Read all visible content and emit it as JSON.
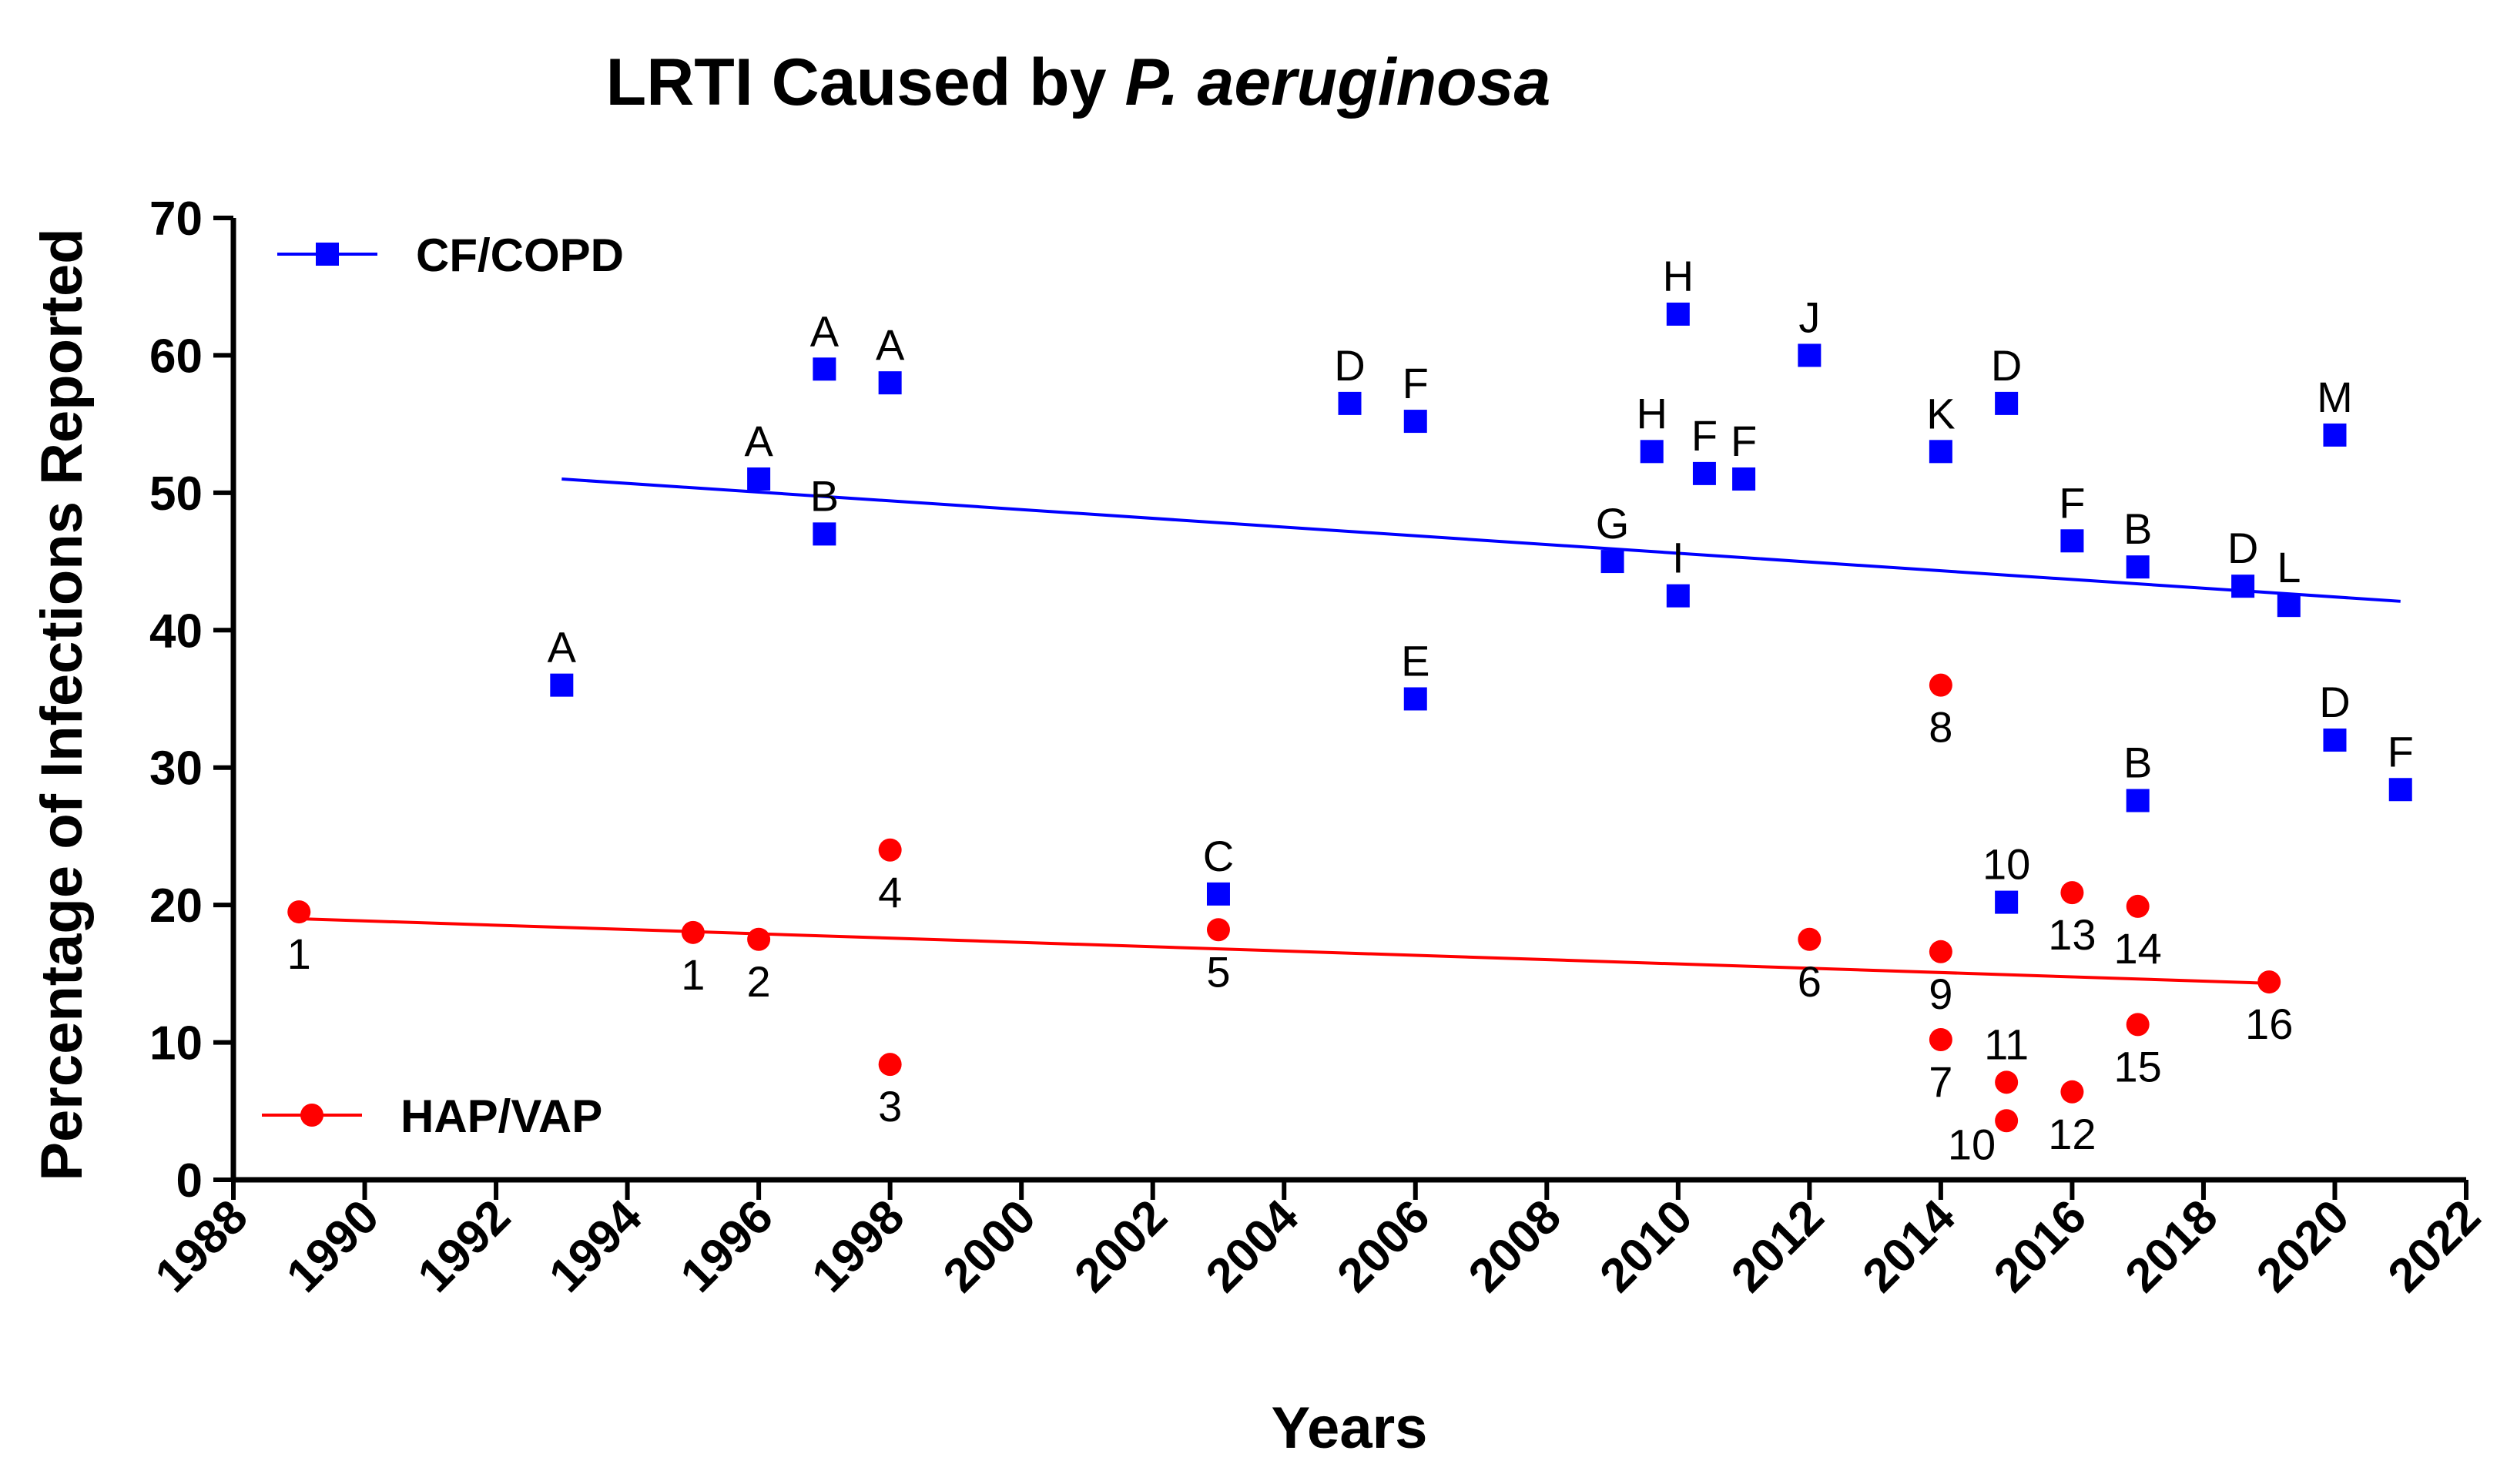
{
  "chart_data": {
    "type": "scatter",
    "title_plain": "LRTI Caused by ",
    "title_italic": "P. aeruginosa",
    "xlabel": "Years",
    "ylabel": "Percentage of Infections Reported",
    "xlim": [
      1988,
      2022
    ],
    "ylim": [
      0,
      70
    ],
    "xticks": [
      1988,
      1990,
      1992,
      1994,
      1996,
      1998,
      2000,
      2002,
      2004,
      2006,
      2008,
      2010,
      2012,
      2014,
      2016,
      2018,
      2020,
      2022
    ],
    "yticks": [
      0,
      10,
      20,
      30,
      40,
      50,
      60,
      70
    ],
    "xtick_labels": [
      "1988",
      "1990",
      "1992",
      "1994",
      "1996",
      "1998",
      "2000",
      "2002",
      "2004",
      "2006",
      "2008",
      "2010",
      "2012",
      "2014",
      "2016",
      "2018",
      "2020",
      "2022"
    ],
    "ytick_labels": [
      "0",
      "10",
      "20",
      "30",
      "40",
      "50",
      "60",
      "70"
    ],
    "series": [
      {
        "name": "CF/COPD",
        "color": "#0000ff",
        "marker": "square",
        "trendline": {
          "x": [
            1993,
            2021
          ],
          "y": [
            51,
            42.1
          ]
        },
        "points": [
          {
            "x": 1993,
            "y": 36,
            "label": "A",
            "label_pos": "above"
          },
          {
            "x": 1996,
            "y": 51,
            "label": "A",
            "label_pos": "above"
          },
          {
            "x": 1997,
            "y": 59,
            "label": "A",
            "label_pos": "above"
          },
          {
            "x": 1997,
            "y": 47,
            "label": "B",
            "label_pos": "above"
          },
          {
            "x": 1998,
            "y": 58,
            "label": "A",
            "label_pos": "above"
          },
          {
            "x": 2003,
            "y": 20.8,
            "label": "C",
            "label_pos": "above"
          },
          {
            "x": 2005,
            "y": 56.5,
            "label": "D",
            "label_pos": "above"
          },
          {
            "x": 2006,
            "y": 55.2,
            "label": "F",
            "label_pos": "above"
          },
          {
            "x": 2006,
            "y": 35,
            "label": "E",
            "label_pos": "above"
          },
          {
            "x": 2009,
            "y": 45,
            "label": "G",
            "label_pos": "above"
          },
          {
            "x": 2009.6,
            "y": 53,
            "label": "H",
            "label_pos": "above"
          },
          {
            "x": 2010,
            "y": 63,
            "label": "H",
            "label_pos": "above"
          },
          {
            "x": 2010,
            "y": 42.5,
            "label": "I",
            "label_pos": "above"
          },
          {
            "x": 2010.4,
            "y": 51.4,
            "label": "F",
            "label_pos": "above"
          },
          {
            "x": 2011,
            "y": 51,
            "label": "F",
            "label_pos": "above"
          },
          {
            "x": 2012,
            "y": 60,
            "label": "J",
            "label_pos": "above"
          },
          {
            "x": 2014,
            "y": 53,
            "label": "K",
            "label_pos": "above"
          },
          {
            "x": 2015,
            "y": 56.5,
            "label": "D",
            "label_pos": "above"
          },
          {
            "x": 2015,
            "y": 20.2,
            "label": "10",
            "label_pos": "above"
          },
          {
            "x": 2016,
            "y": 46.5,
            "label": "F",
            "label_pos": "above"
          },
          {
            "x": 2017,
            "y": 44.6,
            "label": "B",
            "label_pos": "above"
          },
          {
            "x": 2017,
            "y": 27.6,
            "label": "B",
            "label_pos": "above"
          },
          {
            "x": 2018.6,
            "y": 43.2,
            "label": "D",
            "label_pos": "above"
          },
          {
            "x": 2019.3,
            "y": 41.8,
            "label": "L",
            "label_pos": "above"
          },
          {
            "x": 2020,
            "y": 54.2,
            "label": "M",
            "label_pos": "above"
          },
          {
            "x": 2020,
            "y": 32,
            "label": "D",
            "label_pos": "above"
          },
          {
            "x": 2021,
            "y": 28.4,
            "label": "F",
            "label_pos": "above"
          }
        ]
      },
      {
        "name": "HAP/VAP",
        "color": "#ff0000",
        "marker": "circle",
        "trendline": {
          "x": [
            1989,
            2019
          ],
          "y": [
            19,
            14.3
          ]
        },
        "points": [
          {
            "x": 1989,
            "y": 19.5,
            "label": "1",
            "label_pos": "below"
          },
          {
            "x": 1995,
            "y": 18,
            "label": "1",
            "label_pos": "below"
          },
          {
            "x": 1996,
            "y": 17.5,
            "label": "2",
            "label_pos": "below"
          },
          {
            "x": 1998,
            "y": 24,
            "label": "4",
            "label_pos": "below"
          },
          {
            "x": 1998,
            "y": 8.4,
            "label": "3",
            "label_pos": "below"
          },
          {
            "x": 2003,
            "y": 18.2,
            "label": "5",
            "label_pos": "below"
          },
          {
            "x": 2012,
            "y": 17.5,
            "label": "6",
            "label_pos": "below"
          },
          {
            "x": 2014,
            "y": 36,
            "label": "8",
            "label_pos": "below"
          },
          {
            "x": 2014,
            "y": 16.6,
            "label": "9",
            "label_pos": "below"
          },
          {
            "x": 2014,
            "y": 10.2,
            "label": "7",
            "label_pos": "below"
          },
          {
            "x": 2015,
            "y": 7.1,
            "label": "11",
            "label_pos": "above"
          },
          {
            "x": 2015,
            "y": 4.3,
            "label": "10",
            "label_pos": "below-left"
          },
          {
            "x": 2016,
            "y": 20.9,
            "label": "13",
            "label_pos": "below"
          },
          {
            "x": 2016,
            "y": 6.4,
            "label": "12",
            "label_pos": "below"
          },
          {
            "x": 2017,
            "y": 19.9,
            "label": "14",
            "label_pos": "below"
          },
          {
            "x": 2017,
            "y": 11.3,
            "label": "15",
            "label_pos": "below"
          },
          {
            "x": 2019,
            "y": 14.4,
            "label": "16",
            "label_pos": "below"
          }
        ]
      }
    ],
    "legend": [
      {
        "label": "CF/COPD",
        "color": "#0000ff",
        "marker": "square"
      },
      {
        "label": "HAP/VAP",
        "color": "#ff0000",
        "marker": "circle"
      }
    ]
  }
}
